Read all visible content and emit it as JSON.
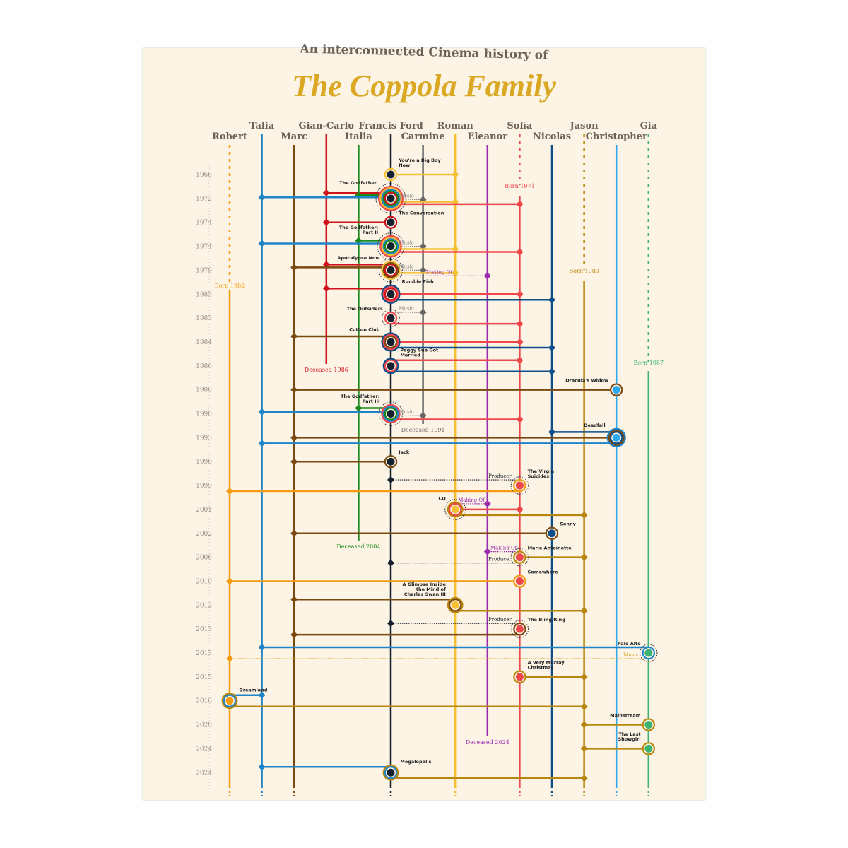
{
  "header": {
    "subtitle": "An interconnected Cinema history of",
    "title": "The Coppola Family"
  },
  "people": [
    {
      "name": "Robert",
      "color": "#f39c12",
      "row": 2,
      "born": "Born 1982"
    },
    {
      "name": "Talia",
      "color": "#1f85c8",
      "row": 1
    },
    {
      "name": "Marc",
      "color": "#7a4a10",
      "row": 2
    },
    {
      "name": "Gian-Carlo",
      "color": "#d0121b",
      "row": 1,
      "deceased": "Deceased 1986"
    },
    {
      "name": "Italia",
      "color": "#1a8a1a",
      "row": 2,
      "deceased": "Deceased 2004"
    },
    {
      "name": "Francis Ford",
      "color": "#13202e",
      "row": 1
    },
    {
      "name": "Carmine",
      "color": "#666666",
      "row": 2,
      "deceased": "Deceased 1991"
    },
    {
      "name": "Roman",
      "color": "#f5c033",
      "row": 1
    },
    {
      "name": "Eleanor",
      "color": "#9b2db0",
      "row": 2,
      "deceased": "Deceased 2024"
    },
    {
      "name": "Sofia",
      "color": "#f0474c",
      "row": 1,
      "born": "Born 1971"
    },
    {
      "name": "Nicolas",
      "color": "#0d4f8a",
      "row": 2
    },
    {
      "name": "Jason",
      "color": "#b8860b",
      "row": 1,
      "born": "Born 1980"
    },
    {
      "name": "Christopher",
      "color": "#2aa8f0",
      "row": 2
    },
    {
      "name": "Gia",
      "color": "#3cb371",
      "row": 1,
      "born": "Born 1987"
    }
  ],
  "films": [
    {
      "year": "1966",
      "title": "You're a Big Boy Now",
      "node": "Francis Ford",
      "links": [
        {
          "p": "Roman"
        }
      ]
    },
    {
      "year": "1972",
      "title": "The Godfather",
      "node": "Francis Ford",
      "links": [
        {
          "p": "Gian-Carlo"
        },
        {
          "p": "Italia"
        },
        {
          "p": "Talia"
        },
        {
          "p": "Carmine",
          "label": "Music"
        },
        {
          "p": "Roman"
        },
        {
          "p": "Sofia"
        }
      ]
    },
    {
      "year": "1974",
      "title": "The Conversation",
      "node": "Francis Ford",
      "links": [
        {
          "p": "Gian-Carlo"
        }
      ]
    },
    {
      "year": "1974",
      "title": "The Godfather: Part II",
      "node": "Francis Ford",
      "links": [
        {
          "p": "Italia"
        },
        {
          "p": "Talia"
        },
        {
          "p": "Carmine",
          "label": "Music"
        },
        {
          "p": "Roman"
        },
        {
          "p": "Sofia"
        }
      ]
    },
    {
      "year": "1979",
      "title": "Apocalypse Now",
      "node": "Francis Ford",
      "links": [
        {
          "p": "Gian-Carlo"
        },
        {
          "p": "Marc"
        },
        {
          "p": "Carmine",
          "label": "Music"
        },
        {
          "p": "Roman"
        },
        {
          "p": "Eleanor",
          "label": "Making Of"
        }
      ]
    },
    {
      "year": "1983",
      "title": "Rumble Fish",
      "node": "Francis Ford",
      "links": [
        {
          "p": "Gian-Carlo"
        },
        {
          "p": "Sofia"
        },
        {
          "p": "Nicolas"
        }
      ]
    },
    {
      "year": "1983",
      "title": "The Outsiders",
      "node": "Francis Ford",
      "links": [
        {
          "p": "Carmine",
          "label": "Music"
        },
        {
          "p": "Sofia"
        }
      ]
    },
    {
      "year": "1984",
      "title": "Cotton Club",
      "node": "Francis Ford",
      "links": [
        {
          "p": "Marc"
        },
        {
          "p": "Sofia"
        },
        {
          "p": "Nicolas"
        }
      ]
    },
    {
      "year": "1986",
      "title": "Peggy Sue Got Married",
      "node": "Francis Ford",
      "links": [
        {
          "p": "Sofia"
        },
        {
          "p": "Nicolas"
        }
      ]
    },
    {
      "year": "1988",
      "title": "Dracula's Widow",
      "node": "Christopher",
      "links": [
        {
          "p": "Marc"
        }
      ]
    },
    {
      "year": "1990",
      "title": "The Godfather: Part III",
      "node": "Francis Ford",
      "links": [
        {
          "p": "Italia"
        },
        {
          "p": "Talia"
        },
        {
          "p": "Carmine",
          "label": "Music"
        },
        {
          "p": "Sofia"
        }
      ]
    },
    {
      "year": "1993",
      "title": "Deadfall",
      "node": "Christopher",
      "links": [
        {
          "p": "Nicolas"
        },
        {
          "p": "Marc"
        },
        {
          "p": "Talia"
        }
      ]
    },
    {
      "year": "1996",
      "title": "Jack",
      "node": "Francis Ford",
      "links": [
        {
          "p": "Marc"
        }
      ]
    },
    {
      "year": "1999",
      "title": "The Virgin Suicides",
      "node": "Sofia",
      "links": [
        {
          "p": "Francis Ford",
          "label": "Producer"
        },
        {
          "p": "Robert"
        }
      ]
    },
    {
      "year": "2001",
      "title": "CQ",
      "node": "Roman",
      "links": [
        {
          "p": "Eleanor",
          "label": "Making Of"
        },
        {
          "p": "Sofia"
        },
        {
          "p": "Jason"
        }
      ]
    },
    {
      "year": "2002",
      "title": "Sonny",
      "node": "Nicolas",
      "links": [
        {
          "p": "Marc"
        }
      ]
    },
    {
      "year": "2006",
      "title": "Marie Antoinette",
      "node": "Sofia",
      "links": [
        {
          "p": "Eleanor",
          "label": "Making Of"
        },
        {
          "p": "Jason"
        },
        {
          "p": "Francis Ford",
          "label": "Producer"
        }
      ]
    },
    {
      "year": "2010",
      "title": "Somewhere",
      "node": "Sofia",
      "links": [
        {
          "p": "Robert"
        }
      ]
    },
    {
      "year": "2012",
      "title": "A Glimpse Inside the Mind of Charles Swan III",
      "node": "Roman",
      "links": [
        {
          "p": "Marc"
        },
        {
          "p": "Jason"
        }
      ]
    },
    {
      "year": "2013",
      "title": "The Bling Ring",
      "node": "Sofia",
      "links": [
        {
          "p": "Francis Ford",
          "label": "Producer"
        },
        {
          "p": "Marc"
        }
      ]
    },
    {
      "year": "2013",
      "title": "Palo Alto",
      "node": "Gia",
      "links": [
        {
          "p": "Talia"
        },
        {
          "p": "Robert",
          "label": "Music"
        }
      ]
    },
    {
      "year": "2015",
      "title": "A Very Murray Christmas",
      "node": "Sofia",
      "links": [
        {
          "p": "Jason"
        }
      ]
    },
    {
      "year": "2016",
      "title": "Dreamland",
      "node": "Robert",
      "links": [
        {
          "p": "Talia"
        },
        {
          "p": "Jason"
        }
      ]
    },
    {
      "year": "2020",
      "title": "Mainstream",
      "node": "Gia",
      "links": [
        {
          "p": "Jason"
        }
      ]
    },
    {
      "year": "2024",
      "title": "The Last Showgirl",
      "node": "Gia",
      "links": [
        {
          "p": "Jason"
        }
      ]
    },
    {
      "year": "2024",
      "title": "Megalopolis",
      "node": "Francis Ford",
      "links": [
        {
          "p": "Talia"
        },
        {
          "p": "Jason"
        }
      ]
    }
  ]
}
